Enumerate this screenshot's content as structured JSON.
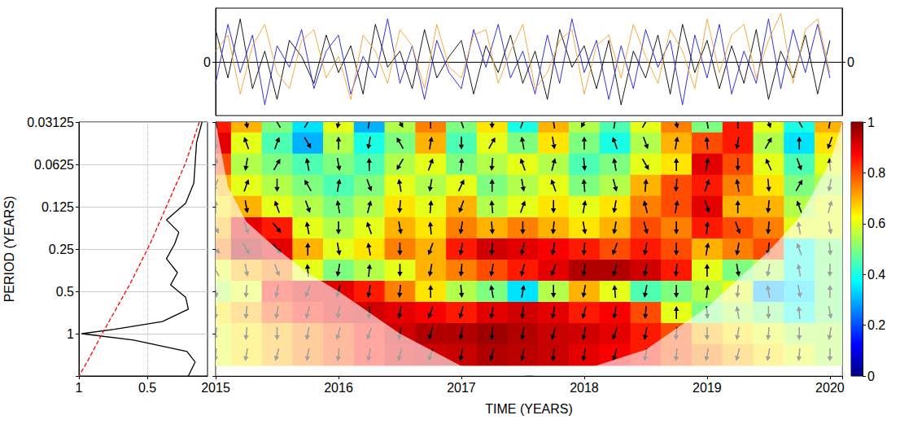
{
  "chart_data": [
    {
      "type": "line",
      "xlim": [
        2015,
        2020.1
      ],
      "ylim": [
        -1,
        1
      ],
      "yticks": [
        0
      ],
      "y2lim": [
        -1,
        1
      ],
      "y2ticks": [
        0
      ],
      "tick_labels": "y",
      "grid": false,
      "x": [
        2015,
        2015.1,
        2015.2,
        2015.3,
        2015.4,
        2015.5,
        2015.6,
        2015.7,
        2015.8,
        2015.9,
        2016,
        2016.1,
        2016.2,
        2016.3,
        2016.4,
        2016.5,
        2016.6,
        2016.7,
        2016.8,
        2016.9,
        2017,
        2017.1,
        2017.2,
        2017.3,
        2017.4,
        2017.5,
        2017.6,
        2017.7,
        2017.8,
        2017.9,
        2018,
        2018.1,
        2018.2,
        2018.3,
        2018.4,
        2018.5,
        2018.6,
        2018.7,
        2018.8,
        2018.9,
        2019,
        2019.1,
        2019.2,
        2019.3,
        2019.4,
        2019.5,
        2019.6,
        2019.7,
        2019.8,
        2019.9,
        2020
      ],
      "series": [
        {
          "color": "#000000",
          "values": [
            0.6,
            -0.3,
            0.8,
            -0.5,
            0.2,
            -0.7,
            0.4,
            0.1,
            -0.4,
            0.5,
            -0.2,
            0.3,
            -0.6,
            0.7,
            -0.1,
            0.2,
            -0.5,
            0.6,
            -0.3,
            0.1,
            0.4,
            -0.6,
            0.3,
            -0.2,
            0.5,
            -0.4,
            0.2,
            -0.7,
            0.6,
            -0.1,
            0.3,
            -0.5,
            0.4,
            -0.8,
            0.2,
            -0.3,
            0.5,
            -0.6,
            0.7,
            -0.2,
            0.4,
            -0.5,
            0.3,
            -0.4,
            0.6,
            -0.7,
            0.2,
            -0.3,
            0.5,
            -0.6,
            0.4
          ]
        },
        {
          "color": "#1c1cd8",
          "values": [
            -0.4,
            0.7,
            -0.2,
            0.5,
            -0.8,
            0.3,
            -0.1,
            0.6,
            -0.5,
            0.2,
            0.5,
            -0.6,
            0.1,
            -0.3,
            0.8,
            -0.4,
            0.3,
            -0.7,
            0.4,
            -0.2,
            -0.5,
            0.6,
            -0.1,
            0.7,
            -0.3,
            0.2,
            -0.6,
            0.5,
            -0.4,
            0.8,
            -0.2,
            0.4,
            -0.7,
            0.3,
            -0.5,
            0.6,
            -0.1,
            0.4,
            -0.8,
            0.5,
            -0.3,
            0.7,
            -0.6,
            0.2,
            -0.4,
            0.8,
            -0.5,
            0.6,
            -0.2,
            0.7,
            -0.3
          ]
        },
        {
          "color": "#f2a22c",
          "values": [
            0.2,
            0.5,
            -0.6,
            0.3,
            0.7,
            -0.2,
            -0.5,
            0.4,
            0.6,
            -0.3,
            0.1,
            -0.7,
            0.5,
            0.2,
            -0.4,
            0.6,
            0.3,
            -0.5,
            0.7,
            -0.1,
            -0.3,
            0.5,
            0.6,
            -0.4,
            0.2,
            0.7,
            -0.5,
            -0.2,
            0.4,
            0.6,
            -0.6,
            0.3,
            0.5,
            -0.3,
            0.7,
            0.1,
            -0.4,
            0.6,
            0.2,
            -0.5,
            0.8,
            -0.2,
            0.5,
            0.7,
            -0.3,
            0.4,
            0.9,
            -0.4,
            0.6,
            0.8,
            -0.2
          ]
        }
      ]
    },
    {
      "type": "line",
      "ylabel": "PERIOD (YEARS)",
      "log": "y",
      "grid": true,
      "xlim": [
        1,
        0.06
      ],
      "xticks": [
        1,
        0.5
      ],
      "ylim": [
        0.03125,
        2
      ],
      "yticks": [
        0.03125,
        0.0625,
        0.125,
        0.25,
        0.5,
        1
      ],
      "series": [
        {
          "color": "#000000",
          "line_style": "solid",
          "y": [
            0.03125,
            0.0437,
            0.061,
            0.085,
            0.118,
            0.155,
            0.19,
            0.23,
            0.293,
            0.368,
            0.45,
            0.55,
            0.67,
            0.82,
            0.93,
            1,
            1.11,
            1.34,
            1.59,
            2
          ],
          "values": [
            0.1,
            0.14,
            0.15,
            0.16,
            0.22,
            0.36,
            0.27,
            0.3,
            0.36,
            0.28,
            0.33,
            0.22,
            0.2,
            0.39,
            0.74,
            0.98,
            0.6,
            0.21,
            0.15,
            0.2
          ]
        },
        {
          "color": "#ff0000",
          "line_style": "dashed",
          "y": [
            0.03125,
            0.061,
            0.118,
            0.23,
            0.45,
            1,
            1.59,
            2
          ],
          "values": [
            0.12,
            0.22,
            0.35,
            0.48,
            0.63,
            0.83,
            0.94,
            1
          ]
        }
      ]
    },
    {
      "type": "heatmap",
      "xlabel": "TIME (YEARS)",
      "log": "y",
      "tick_labels": "x",
      "xlim": [
        2015,
        2020.1
      ],
      "xticks": [
        2015,
        2016,
        2017,
        2018,
        2019,
        2020
      ],
      "ylim": [
        0.03125,
        2
      ],
      "yticks": [
        0.03125,
        0.0625,
        0.125,
        0.25,
        0.5,
        1
      ],
      "x": [
        2015,
        2015.25,
        2015.5,
        2015.75,
        2016,
        2016.25,
        2016.5,
        2016.75,
        2017,
        2017.25,
        2017.5,
        2017.75,
        2018,
        2018.25,
        2018.5,
        2018.75,
        2019,
        2019.25,
        2019.5,
        2019.75,
        2020
      ],
      "y": [
        0.03125,
        0.044,
        0.0625,
        0.088,
        0.125,
        0.177,
        0.25,
        0.354,
        0.5,
        0.707,
        1,
        1.414
      ],
      "cells": [
        [
          0.85,
          0.7,
          0.5,
          0.35,
          0.6,
          0.3,
          0.55,
          0.75,
          0.5,
          0.65,
          0.4,
          0.7,
          0.55,
          0.45,
          0.6,
          0.75,
          0.5,
          0.85,
          0.6,
          0.4,
          0.7
        ],
        [
          0.9,
          0.6,
          0.45,
          0.3,
          0.55,
          0.4,
          0.5,
          0.7,
          0.45,
          0.6,
          0.5,
          0.65,
          0.5,
          0.4,
          0.55,
          0.7,
          0.8,
          0.85,
          0.55,
          0.35,
          0.65
        ],
        [
          0.8,
          0.55,
          0.5,
          0.45,
          0.5,
          0.45,
          0.55,
          0.6,
          0.5,
          0.55,
          0.6,
          0.55,
          0.45,
          0.5,
          0.6,
          0.65,
          0.9,
          0.8,
          0.6,
          0.45,
          0.6
        ],
        [
          0.7,
          0.6,
          0.55,
          0.5,
          0.45,
          0.5,
          0.6,
          0.55,
          0.6,
          0.5,
          0.55,
          0.6,
          0.5,
          0.55,
          0.7,
          0.8,
          0.85,
          0.75,
          0.65,
          0.5,
          0.55
        ],
        [
          0.65,
          0.7,
          0.6,
          0.55,
          0.5,
          0.55,
          0.65,
          0.6,
          0.7,
          0.55,
          0.6,
          0.65,
          0.6,
          0.65,
          0.75,
          0.8,
          0.9,
          0.7,
          0.7,
          0.55,
          0.6
        ],
        [
          0.7,
          0.9,
          0.85,
          0.6,
          0.55,
          0.6,
          0.7,
          0.65,
          0.75,
          0.7,
          0.75,
          0.7,
          0.65,
          0.7,
          0.8,
          0.75,
          0.85,
          0.8,
          0.75,
          0.6,
          0.6
        ],
        [
          0.75,
          0.95,
          0.9,
          0.7,
          0.6,
          0.65,
          0.75,
          0.7,
          0.85,
          0.92,
          0.9,
          0.88,
          0.85,
          0.8,
          0.85,
          0.8,
          0.7,
          0.75,
          0.8,
          0.4,
          0.5
        ],
        [
          0.6,
          0.7,
          0.75,
          0.6,
          0.5,
          0.55,
          0.6,
          0.7,
          0.75,
          0.8,
          0.85,
          0.9,
          0.95,
          0.95,
          0.92,
          0.85,
          0.6,
          0.5,
          0.55,
          0.4,
          0.5
        ],
        [
          0.55,
          0.6,
          0.85,
          0.9,
          0.9,
          0.85,
          0.75,
          0.65,
          0.55,
          0.5,
          0.35,
          0.55,
          0.7,
          0.6,
          0.45,
          0.5,
          0.55,
          0.6,
          0.3,
          0.35,
          0.5
        ],
        [
          0.65,
          0.7,
          0.8,
          0.85,
          0.9,
          0.92,
          0.9,
          0.88,
          0.85,
          0.9,
          0.92,
          0.9,
          0.85,
          0.88,
          0.8,
          0.6,
          0.5,
          0.55,
          0.5,
          0.4,
          0.5
        ],
        [
          0.6,
          0.65,
          0.7,
          0.75,
          0.8,
          0.85,
          0.92,
          0.95,
          0.95,
          0.97,
          0.95,
          0.93,
          0.92,
          0.9,
          0.85,
          0.8,
          0.7,
          0.65,
          0.6,
          0.55,
          0.55
        ],
        [
          0.6,
          0.65,
          0.7,
          0.75,
          0.8,
          0.85,
          0.9,
          0.92,
          0.93,
          0.95,
          0.94,
          0.93,
          0.9,
          0.88,
          0.85,
          0.8,
          0.75,
          0.7,
          0.65,
          0.6,
          0.55
        ]
      ],
      "colorbar": {
        "range": [
          0,
          1
        ],
        "ticks": [
          0,
          0.2,
          0.4,
          0.6,
          0.8,
          1
        ]
      },
      "phase_arrows": [
        [
          100,
          -80,
          120,
          60,
          -100,
          80,
          -60,
          90,
          110,
          -90,
          70,
          100,
          -120,
          80,
          60,
          -80,
          100,
          90,
          -70,
          120,
          80
        ],
        [
          -90,
          110,
          70,
          -60,
          90,
          -100,
          120,
          80,
          -90,
          60,
          100,
          -80,
          90,
          110,
          -70,
          80,
          95,
          -100,
          60,
          90,
          -110
        ],
        [
          80,
          -100,
          60,
          100,
          -80,
          90,
          -120,
          70,
          85,
          -95,
          110,
          75,
          -85,
          100,
          -60,
          90,
          80,
          -90,
          115,
          -70,
          95
        ],
        [
          -110,
          70,
          -90,
          120,
          80,
          -70,
          100,
          -100,
          65,
          90,
          -80,
          110,
          95,
          -75,
          85,
          -95,
          70,
          100,
          -85,
          60,
          -100
        ],
        [
          90,
          -80,
          110,
          -70,
          100,
          75,
          -95,
          85,
          -110,
          95,
          70,
          -90,
          80,
          -100,
          105,
          80,
          -70,
          90,
          -95,
          110,
          75
        ],
        [
          -60,
          -70,
          -50,
          100,
          -90,
          110,
          -80,
          95,
          -100,
          -85,
          -90,
          -95,
          -80,
          -100,
          -75,
          -90,
          85,
          -70,
          -95,
          100,
          -80
        ],
        [
          -45,
          -60,
          -50,
          90,
          -80,
          100,
          -90,
          -110,
          -100,
          -95,
          -105,
          -100,
          -95,
          -110,
          -100,
          -90,
          80,
          -100,
          -95,
          110,
          -85
        ],
        [
          120,
          -80,
          -70,
          95,
          -100,
          85,
          -90,
          -100,
          -95,
          -100,
          -105,
          -110,
          -100,
          -105,
          -100,
          -95,
          90,
          -80,
          -100,
          100,
          -90
        ],
        [
          -80,
          -95,
          -100,
          -110,
          -105,
          -100,
          -95,
          90,
          -85,
          100,
          80,
          -90,
          -100,
          95,
          -100,
          -90,
          85,
          -95,
          100,
          -80,
          90
        ],
        [
          -90,
          -95,
          -100,
          -105,
          -100,
          -95,
          -100,
          -110,
          -105,
          -100,
          -95,
          -100,
          -105,
          -100,
          -95,
          90,
          -85,
          100,
          -90,
          95,
          -80
        ],
        [
          -100,
          -95,
          -90,
          -100,
          -105,
          -110,
          -100,
          -105,
          -100,
          -95,
          -100,
          -105,
          -100,
          -110,
          -100,
          -95,
          -90,
          -100,
          -95,
          -90,
          -100
        ],
        [
          -95,
          -100,
          -105,
          -100,
          -95,
          -100,
          -105,
          -110,
          -100,
          -105,
          -100,
          -95,
          -100,
          -105,
          -100,
          -95,
          -100,
          -105,
          -100,
          -95,
          -90
        ]
      ],
      "cone_of_influence": {
        "x": [
          2015,
          2015.1,
          2015.25,
          2015.5,
          2015.75,
          2016,
          2016.5,
          2017,
          2017.55,
          2018,
          2018.5,
          2019,
          2019.5,
          2019.75,
          2020,
          2020.1
        ],
        "period": [
          0.03125,
          0.09,
          0.16,
          0.25,
          0.37,
          0.5,
          1,
          1.7,
          2,
          1.8,
          1.3,
          0.65,
          0.26,
          0.15,
          0.06,
          0.03125
        ]
      }
    }
  ]
}
